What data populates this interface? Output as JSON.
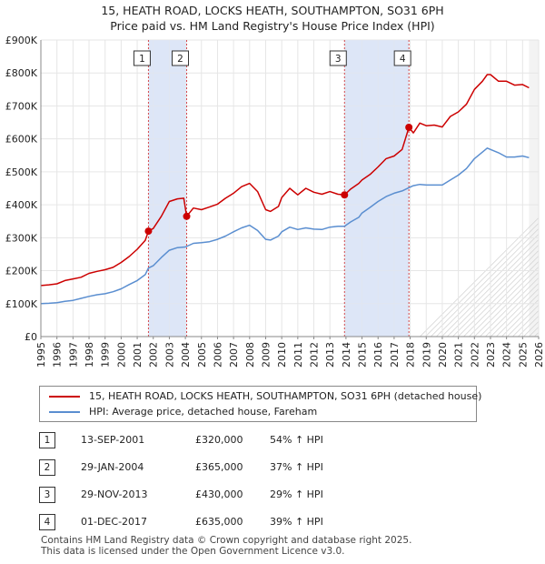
{
  "title_line1": "15, HEATH ROAD, LOCKS HEATH, SOUTHAMPTON, SO31 6PH",
  "title_line2": "Price paid vs. HM Land Registry's House Price Index (HPI)",
  "colors": {
    "property": "#cc0000",
    "hpi": "#5a8ed0",
    "band": "#dde6f7",
    "grid": "#e6e6e6"
  },
  "legend": {
    "property_label": "15, HEATH ROAD, LOCKS HEATH, SOUTHAMPTON, SO31 6PH (detached house)",
    "hpi_label": "HPI: Average price, detached house, Fareham"
  },
  "transactions": [
    {
      "num": "1",
      "date": "13-SEP-2001",
      "price": "£320,000",
      "hpi": "54% ↑ HPI"
    },
    {
      "num": "2",
      "date": "29-JAN-2004",
      "price": "£365,000",
      "hpi": "37% ↑ HPI"
    },
    {
      "num": "3",
      "date": "29-NOV-2013",
      "price": "£430,000",
      "hpi": "29% ↑ HPI"
    },
    {
      "num": "4",
      "date": "01-DEC-2017",
      "price": "£635,000",
      "hpi": "39% ↑ HPI"
    }
  ],
  "footer_line1": "Contains HM Land Registry data © Crown copyright and database right 2025.",
  "footer_line2": "This data is licensed under the Open Government Licence v3.0.",
  "chart_data": {
    "type": "line",
    "title": "15, HEATH ROAD, LOCKS HEATH, SOUTHAMPTON, SO31 6PH",
    "subtitle": "Price paid vs. HM Land Registry's House Price Index (HPI)",
    "xlabel": "",
    "ylabel": "",
    "xlim": [
      1995,
      2026
    ],
    "ylim": [
      0,
      900000
    ],
    "y_ticks": [
      0,
      100000,
      200000,
      300000,
      400000,
      500000,
      600000,
      700000,
      800000,
      900000
    ],
    "y_tick_labels": [
      "£0",
      "£100K",
      "£200K",
      "£300K",
      "£400K",
      "£500K",
      "£600K",
      "£700K",
      "£800K",
      "£900K"
    ],
    "x_ticks": [
      1995,
      1996,
      1997,
      1998,
      1999,
      2000,
      2001,
      2002,
      2003,
      2004,
      2005,
      2006,
      2007,
      2008,
      2009,
      2010,
      2011,
      2012,
      2013,
      2014,
      2015,
      2016,
      2017,
      2018,
      2019,
      2020,
      2021,
      2022,
      2023,
      2024,
      2025,
      2026
    ],
    "grid": true,
    "sale_bands": [
      [
        2001.7,
        2004.08
      ],
      [
        2013.91,
        2017.92
      ]
    ],
    "markers": [
      {
        "label": "1",
        "x": 2001.7,
        "y": 320000
      },
      {
        "label": "2",
        "x": 2004.08,
        "y": 365000
      },
      {
        "label": "3",
        "x": 2013.91,
        "y": 430000
      },
      {
        "label": "4",
        "x": 2017.92,
        "y": 635000
      }
    ],
    "latest_data_x": 2025.4,
    "series": [
      {
        "name": "15, HEATH ROAD, LOCKS HEATH, SOUTHAMPTON, SO31 6PH (detached house)",
        "color": "#cc0000",
        "x": [
          1995,
          1995.5,
          1996,
          1996.5,
          1997,
          1997.5,
          1998,
          1998.5,
          1999,
          1999.5,
          2000,
          2000.5,
          2001,
          2001.5,
          2001.7,
          2002,
          2002.5,
          2003,
          2003.5,
          2003.9,
          2004.08,
          2004.5,
          2005,
          2005.5,
          2006,
          2006.5,
          2007,
          2007.5,
          2008,
          2008.5,
          2009,
          2009.3,
          2009.8,
          2010,
          2010.5,
          2011,
          2011.5,
          2012,
          2012.5,
          2013,
          2013.5,
          2013.91,
          2014.3,
          2014.8,
          2015,
          2015.5,
          2016,
          2016.5,
          2017,
          2017.5,
          2017.92,
          2018.2,
          2018.6,
          2019,
          2019.5,
          2020,
          2020.5,
          2021,
          2021.5,
          2022,
          2022.5,
          2022.8,
          2023,
          2023.5,
          2024,
          2024.5,
          2025,
          2025.4
        ],
        "values": [
          155000,
          157000,
          160000,
          170000,
          175000,
          180000,
          192000,
          198000,
          203000,
          210000,
          225000,
          243000,
          265000,
          292000,
          320000,
          328000,
          365000,
          410000,
          418000,
          420000,
          365000,
          390000,
          385000,
          393000,
          402000,
          420000,
          435000,
          455000,
          465000,
          440000,
          385000,
          380000,
          395000,
          422000,
          450000,
          430000,
          450000,
          438000,
          432000,
          440000,
          432000,
          430000,
          448000,
          465000,
          475000,
          492000,
          515000,
          540000,
          548000,
          568000,
          635000,
          618000,
          648000,
          640000,
          642000,
          636000,
          668000,
          682000,
          705000,
          750000,
          775000,
          795000,
          795000,
          775000,
          775000,
          763000,
          765000,
          755000
        ]
      },
      {
        "name": "HPI: Average price, detached house, Fareham",
        "color": "#5a8ed0",
        "x": [
          1995,
          1995.5,
          1996,
          1996.5,
          1997,
          1997.5,
          1998,
          1998.5,
          1999,
          1999.5,
          2000,
          2000.5,
          2001,
          2001.5,
          2001.7,
          2002,
          2002.5,
          2003,
          2003.5,
          2004,
          2004.5,
          2005,
          2005.5,
          2006,
          2006.5,
          2007,
          2007.5,
          2008,
          2008.5,
          2009,
          2009.3,
          2009.8,
          2010,
          2010.5,
          2011,
          2011.5,
          2012,
          2012.5,
          2013,
          2013.5,
          2013.91,
          2014.3,
          2014.8,
          2015,
          2015.5,
          2016,
          2016.5,
          2017,
          2017.5,
          2017.92,
          2018.2,
          2018.6,
          2019,
          2019.5,
          2020,
          2020.5,
          2021,
          2021.5,
          2022,
          2022.5,
          2022.8,
          2023,
          2023.5,
          2024,
          2024.5,
          2025,
          2025.4
        ],
        "values": [
          100000,
          101000,
          103000,
          107000,
          110000,
          116000,
          122000,
          127000,
          130000,
          136000,
          145000,
          158000,
          170000,
          188000,
          208000,
          215000,
          240000,
          262000,
          270000,
          272000,
          283000,
          285000,
          288000,
          295000,
          305000,
          318000,
          330000,
          338000,
          322000,
          295000,
          293000,
          305000,
          318000,
          332000,
          325000,
          330000,
          326000,
          325000,
          332000,
          335000,
          335000,
          348000,
          362000,
          375000,
          392000,
          410000,
          425000,
          435000,
          442000,
          452000,
          458000,
          462000,
          460000,
          460000,
          460000,
          475000,
          490000,
          510000,
          540000,
          560000,
          572000,
          568000,
          558000,
          545000,
          545000,
          548000,
          543000
        ]
      }
    ]
  }
}
